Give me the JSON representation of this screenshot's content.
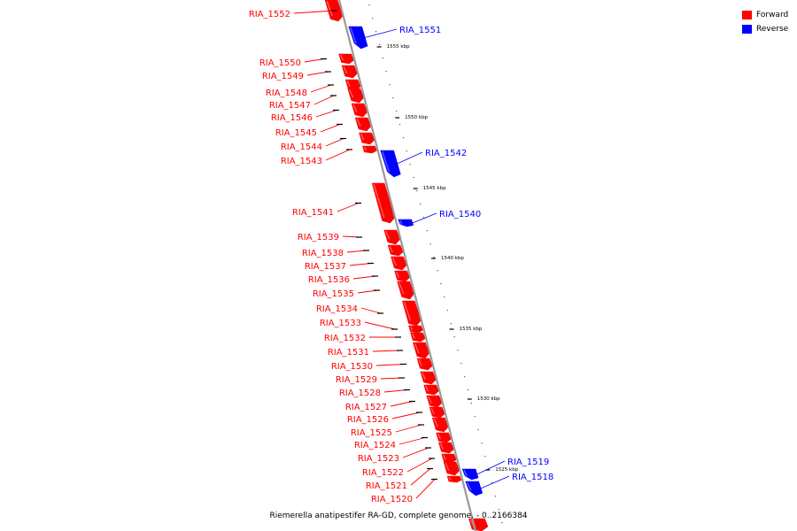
{
  "legend": [
    {
      "label": "Forward",
      "color": "#ff0000"
    },
    {
      "label": "Reverse",
      "color": "#0000ff"
    }
  ],
  "caption": "Riemerella anatipestifer RA-GD, complete genome. - 0..2166384",
  "colors": {
    "forward": "#ff0000",
    "reverse": "#0000ff",
    "backbone": "#999999"
  },
  "scale_labels": [
    "1555 kbp",
    "1550 kbp",
    "1545 kbp",
    "1540 kbp",
    "1535 kbp",
    "1530 kbp",
    "1525 kbp"
  ],
  "forward_genes": [
    "RIA_1552",
    "RIA_1550",
    "RIA_1549",
    "RIA_1548",
    "RIA_1547",
    "RIA_1546",
    "RIA_1545",
    "RIA_1544",
    "RIA_1543",
    "RIA_1541",
    "RIA_1539",
    "RIA_1538",
    "RIA_1537",
    "RIA_1536",
    "RIA_1535",
    "RIA_1534",
    "RIA_1533",
    "RIA_1532",
    "RIA_1531",
    "RIA_1530",
    "RIA_1529",
    "RIA_1528",
    "RIA_1527",
    "RIA_1526",
    "RIA_1525",
    "RIA_1524",
    "RIA_1523",
    "RIA_1522",
    "RIA_1521",
    "RIA_1520"
  ],
  "reverse_genes": [
    "RIA_1551",
    "RIA_1542",
    "RIA_1540",
    "RIA_1519",
    "RIA_1518"
  ]
}
